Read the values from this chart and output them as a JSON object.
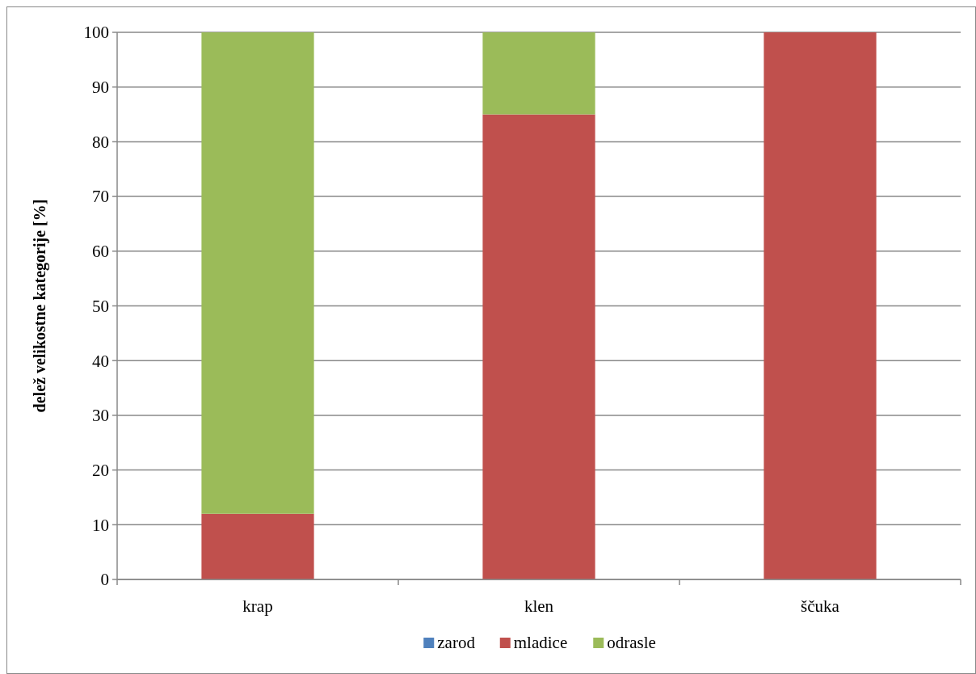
{
  "chart_data": {
    "type": "bar",
    "stacked": true,
    "ylabel": "delež velikostne kategorije [%]",
    "categories": [
      "krap",
      "klen",
      "ščuka"
    ],
    "series": [
      {
        "name": "zarod",
        "color": "#4f81bd",
        "values": [
          0,
          0,
          0
        ]
      },
      {
        "name": "mladice",
        "color": "#c0504d",
        "values": [
          12,
          85,
          100
        ]
      },
      {
        "name": "odrasle",
        "color": "#9bbb59",
        "values": [
          88,
          15,
          0
        ]
      }
    ],
    "ylim": [
      0,
      100
    ],
    "yticks": [
      0,
      10,
      20,
      30,
      40,
      50,
      60,
      70,
      80,
      90,
      100
    ],
    "grid": "y",
    "legend": "bottom"
  }
}
